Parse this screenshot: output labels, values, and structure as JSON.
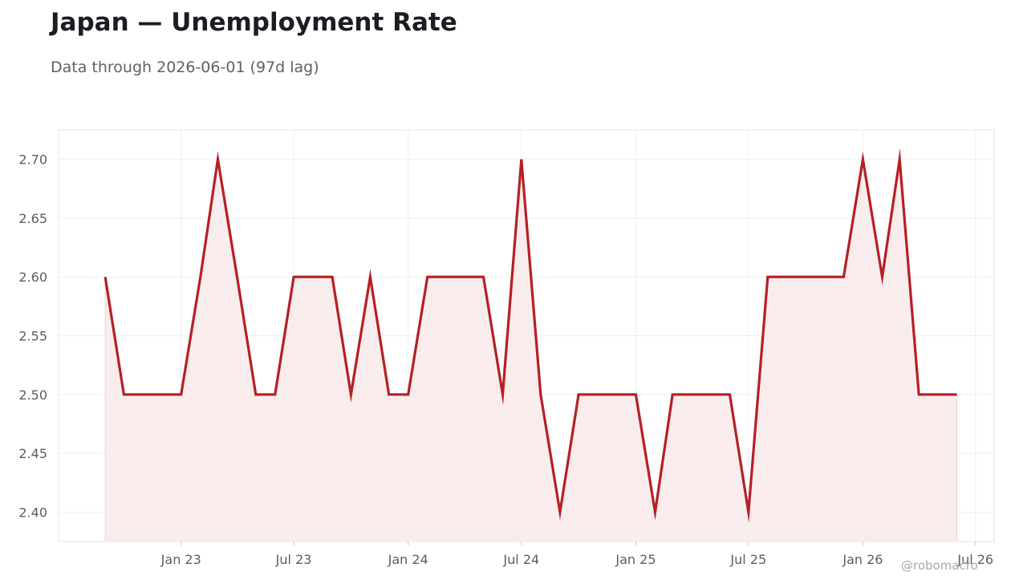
{
  "header": {
    "title": "Japan — Unemployment Rate",
    "subtitle": "Data through 2026-06-01 (97d lag)"
  },
  "watermark": "@robomacro",
  "chart_data": {
    "type": "area",
    "title": "Japan — Unemployment Rate",
    "xlabel": "",
    "ylabel": "",
    "ylim": [
      2.375,
      2.725
    ],
    "xlim": [
      "2022-06-18",
      "2026-07-31"
    ],
    "grid": true,
    "line_color": "#b61f24",
    "fill_color": "#f9eced",
    "y_ticks": [
      2.4,
      2.45,
      2.5,
      2.55,
      2.6,
      2.65,
      2.7
    ],
    "y_tick_labels": [
      "2.40",
      "2.45",
      "2.50",
      "2.55",
      "2.60",
      "2.65",
      "2.70"
    ],
    "x_ticks": [
      {
        "date": "2023-01-01",
        "label": "Jan 23"
      },
      {
        "date": "2023-07-01",
        "label": "Jul 23"
      },
      {
        "date": "2024-01-01",
        "label": "Jan 24"
      },
      {
        "date": "2024-07-01",
        "label": "Jul 24"
      },
      {
        "date": "2025-01-01",
        "label": "Jan 25"
      },
      {
        "date": "2025-07-01",
        "label": "Jul 25"
      },
      {
        "date": "2026-01-01",
        "label": "Jan 26"
      },
      {
        "date": "2026-07-01",
        "label": "Jul 26"
      }
    ],
    "series": [
      {
        "values": [
          [
            "2022-09-01",
            2.6
          ],
          [
            "2022-10-01",
            2.5
          ],
          [
            "2022-11-01",
            2.5
          ],
          [
            "2022-12-01",
            2.5
          ],
          [
            "2023-01-01",
            2.5
          ],
          [
            "2023-02-01",
            2.6
          ],
          [
            "2023-03-01",
            2.7
          ],
          [
            "2023-04-01",
            2.6
          ],
          [
            "2023-05-01",
            2.5
          ],
          [
            "2023-06-01",
            2.5
          ],
          [
            "2023-07-01",
            2.6
          ],
          [
            "2023-08-01",
            2.6
          ],
          [
            "2023-09-01",
            2.6
          ],
          [
            "2023-10-01",
            2.5
          ],
          [
            "2023-11-01",
            2.6
          ],
          [
            "2023-12-01",
            2.5
          ],
          [
            "2024-01-01",
            2.5
          ],
          [
            "2024-02-01",
            2.6
          ],
          [
            "2024-03-01",
            2.6
          ],
          [
            "2024-04-01",
            2.6
          ],
          [
            "2024-05-01",
            2.6
          ],
          [
            "2024-06-01",
            2.5
          ],
          [
            "2024-07-01",
            2.7
          ],
          [
            "2024-08-01",
            2.5
          ],
          [
            "2024-09-01",
            2.4
          ],
          [
            "2024-10-01",
            2.5
          ],
          [
            "2024-11-01",
            2.5
          ],
          [
            "2024-12-01",
            2.5
          ],
          [
            "2025-01-01",
            2.5
          ],
          [
            "2025-02-01",
            2.4
          ],
          [
            "2025-03-01",
            2.5
          ],
          [
            "2025-04-01",
            2.5
          ],
          [
            "2025-05-01",
            2.5
          ],
          [
            "2025-06-01",
            2.5
          ],
          [
            "2025-07-01",
            2.4
          ],
          [
            "2025-08-01",
            2.6
          ],
          [
            "2025-09-01",
            2.6
          ],
          [
            "2025-10-01",
            2.6
          ],
          [
            "2025-11-01",
            2.6
          ],
          [
            "2025-12-01",
            2.6
          ],
          [
            "2026-01-01",
            2.7
          ],
          [
            "2026-02-01",
            2.6
          ],
          [
            "2026-03-01",
            2.7
          ],
          [
            "2026-04-01",
            2.5
          ],
          [
            "2026-05-01",
            2.5
          ],
          [
            "2026-06-01",
            2.5
          ]
        ]
      }
    ]
  }
}
